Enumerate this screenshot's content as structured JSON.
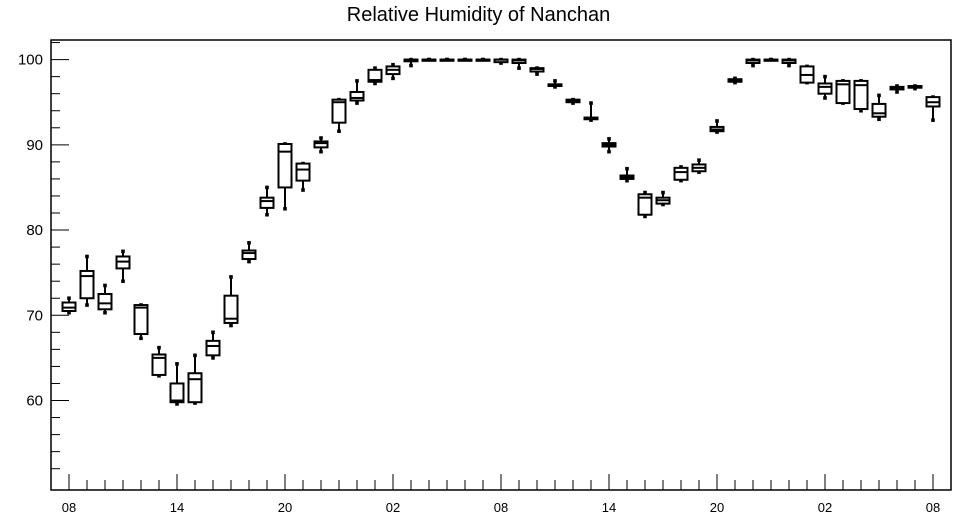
{
  "chart_data": {
    "type": "boxplot",
    "title": "Relative Humidity of Nanchan",
    "xlabel": "",
    "ylabel": "",
    "ylim": [
      49.5,
      102.3
    ],
    "yticks": [
      60,
      70,
      80,
      90,
      100
    ],
    "xticks": [
      {
        "label": "08",
        "hour": 0
      },
      {
        "label": "14",
        "hour": 6
      },
      {
        "label": "20",
        "hour": 12
      },
      {
        "label": "02",
        "hour": 18
      },
      {
        "label": "08",
        "hour": 24
      },
      {
        "label": "14",
        "hour": 30
      },
      {
        "label": "20",
        "hour": 36
      },
      {
        "label": "02",
        "hour": 42
      },
      {
        "label": "08",
        "hour": 48
      }
    ],
    "grid": false,
    "boxes": [
      {
        "hour": 0,
        "whisker_low": 70.3,
        "q1": 70.5,
        "median": 70.9,
        "q3": 71.5,
        "whisker_high": 72.0
      },
      {
        "hour": 1,
        "whisker_low": 71.2,
        "q1": 72.0,
        "median": 74.6,
        "q3": 75.2,
        "whisker_high": 76.9
      },
      {
        "hour": 2,
        "whisker_low": 70.3,
        "q1": 70.7,
        "median": 71.4,
        "q3": 72.5,
        "whisker_high": 73.5
      },
      {
        "hour": 3,
        "whisker_low": 74.0,
        "q1": 75.5,
        "median": 76.3,
        "q3": 76.9,
        "whisker_high": 77.5
      },
      {
        "hour": 4,
        "whisker_low": 67.3,
        "q1": 67.8,
        "median": 70.9,
        "q3": 71.2,
        "whisker_high": 71.2
      },
      {
        "hour": 5,
        "whisker_low": 62.9,
        "q1": 63.0,
        "median": 65.0,
        "q3": 65.4,
        "whisker_high": 66.2
      },
      {
        "hour": 6,
        "whisker_low": 59.6,
        "q1": 59.8,
        "median": 60.0,
        "q3": 62.0,
        "whisker_high": 64.3
      },
      {
        "hour": 7,
        "whisker_low": 59.7,
        "q1": 59.8,
        "median": 62.5,
        "q3": 63.2,
        "whisker_high": 65.3
      },
      {
        "hour": 8,
        "whisker_low": 65.0,
        "q1": 65.3,
        "median": 66.4,
        "q3": 67.0,
        "whisker_high": 68.0
      },
      {
        "hour": 9,
        "whisker_low": 68.8,
        "q1": 69.1,
        "median": 69.6,
        "q3": 72.3,
        "whisker_high": 74.5
      },
      {
        "hour": 10,
        "whisker_low": 76.3,
        "q1": 76.6,
        "median": 77.3,
        "q3": 77.6,
        "whisker_high": 78.5
      },
      {
        "hour": 11,
        "whisker_low": 81.8,
        "q1": 82.6,
        "median": 83.4,
        "q3": 83.8,
        "whisker_high": 85.0
      },
      {
        "hour": 12,
        "whisker_low": 82.5,
        "q1": 85.0,
        "median": 89.2,
        "q3": 90.1,
        "whisker_high": 90.1
      },
      {
        "hour": 13,
        "whisker_low": 84.7,
        "q1": 85.8,
        "median": 87.1,
        "q3": 87.8,
        "whisker_high": 87.8
      },
      {
        "hour": 14,
        "whisker_low": 89.2,
        "q1": 89.7,
        "median": 90.2,
        "q3": 90.4,
        "whisker_high": 90.8
      },
      {
        "hour": 15,
        "whisker_low": 91.6,
        "q1": 92.6,
        "median": 95.0,
        "q3": 95.3,
        "whisker_high": 95.3
      },
      {
        "hour": 16,
        "whisker_low": 94.9,
        "q1": 95.2,
        "median": 95.5,
        "q3": 96.2,
        "whisker_high": 97.5
      },
      {
        "hour": 17,
        "whisker_low": 97.2,
        "q1": 97.4,
        "median": 97.6,
        "q3": 98.8,
        "whisker_high": 99.0
      },
      {
        "hour": 18,
        "whisker_low": 97.8,
        "q1": 98.3,
        "median": 98.8,
        "q3": 99.2,
        "whisker_high": 99.4
      },
      {
        "hour": 19,
        "whisker_low": 99.3,
        "q1": 99.8,
        "median": 100.0,
        "q3": 100.0,
        "whisker_high": 100.0
      },
      {
        "hour": 20,
        "whisker_low": 100.0,
        "q1": 100.0,
        "median": 100.0,
        "q3": 100.0,
        "whisker_high": 100.0
      },
      {
        "hour": 21,
        "whisker_low": 100.0,
        "q1": 100.0,
        "median": 100.0,
        "q3": 100.0,
        "whisker_high": 100.0
      },
      {
        "hour": 22,
        "whisker_low": 100.0,
        "q1": 100.0,
        "median": 100.0,
        "q3": 100.0,
        "whisker_high": 100.0
      },
      {
        "hour": 23,
        "whisker_low": 100.0,
        "q1": 100.0,
        "median": 100.0,
        "q3": 100.0,
        "whisker_high": 100.0
      },
      {
        "hour": 24,
        "whisker_low": 99.6,
        "q1": 99.7,
        "median": 100.0,
        "q3": 100.0,
        "whisker_high": 100.0
      },
      {
        "hour": 25,
        "whisker_low": 99.0,
        "q1": 99.6,
        "median": 99.9,
        "q3": 100.0,
        "whisker_high": 100.0
      },
      {
        "hour": 26,
        "whisker_low": 98.3,
        "q1": 98.6,
        "median": 98.9,
        "q3": 99.0,
        "whisker_high": 99.0
      },
      {
        "hour": 27,
        "whisker_low": 96.8,
        "q1": 96.9,
        "median": 97.0,
        "q3": 97.1,
        "whisker_high": 97.5
      },
      {
        "hour": 28,
        "whisker_low": 94.9,
        "q1": 95.0,
        "median": 95.1,
        "q3": 95.3,
        "whisker_high": 95.3
      },
      {
        "hour": 29,
        "whisker_low": 92.9,
        "q1": 93.0,
        "median": 93.1,
        "q3": 93.2,
        "whisker_high": 94.9
      },
      {
        "hour": 30,
        "whisker_low": 89.2,
        "q1": 89.8,
        "median": 90.0,
        "q3": 90.2,
        "whisker_high": 90.7
      },
      {
        "hour": 31,
        "whisker_low": 85.8,
        "q1": 86.0,
        "median": 86.2,
        "q3": 86.4,
        "whisker_high": 87.2
      },
      {
        "hour": 32,
        "whisker_low": 81.6,
        "q1": 81.8,
        "median": 83.8,
        "q3": 84.2,
        "whisker_high": 84.4
      },
      {
        "hour": 33,
        "whisker_low": 83.0,
        "q1": 83.1,
        "median": 83.5,
        "q3": 83.8,
        "whisker_high": 84.4
      },
      {
        "hour": 34,
        "whisker_low": 85.8,
        "q1": 85.9,
        "median": 86.8,
        "q3": 87.3,
        "whisker_high": 87.4
      },
      {
        "hour": 35,
        "whisker_low": 86.8,
        "q1": 86.9,
        "median": 87.3,
        "q3": 87.7,
        "whisker_high": 88.2
      },
      {
        "hour": 36,
        "whisker_low": 91.5,
        "q1": 91.6,
        "median": 91.8,
        "q3": 92.1,
        "whisker_high": 92.8
      },
      {
        "hour": 37,
        "whisker_low": 97.3,
        "q1": 97.4,
        "median": 97.6,
        "q3": 97.7,
        "whisker_high": 97.8
      },
      {
        "hour": 38,
        "whisker_low": 99.3,
        "q1": 99.6,
        "median": 99.9,
        "q3": 100.0,
        "whisker_high": 100.0
      },
      {
        "hour": 39,
        "whisker_low": 100.0,
        "q1": 100.0,
        "median": 100.0,
        "q3": 100.0,
        "whisker_high": 100.0
      },
      {
        "hour": 40,
        "whisker_low": 99.3,
        "q1": 99.6,
        "median": 99.9,
        "q3": 100.0,
        "whisker_high": 100.0
      },
      {
        "hour": 41,
        "whisker_low": 97.3,
        "q1": 97.3,
        "median": 98.2,
        "q3": 99.2,
        "whisker_high": 99.2
      },
      {
        "hour": 42,
        "whisker_low": 95.5,
        "q1": 96.0,
        "median": 96.8,
        "q3": 97.2,
        "whisker_high": 98.0
      },
      {
        "hour": 43,
        "whisker_low": 94.9,
        "q1": 94.9,
        "median": 97.1,
        "q3": 97.5,
        "whisker_high": 97.5
      },
      {
        "hour": 44,
        "whisker_low": 94.0,
        "q1": 94.2,
        "median": 97.0,
        "q3": 97.5,
        "whisker_high": 97.5
      },
      {
        "hour": 45,
        "whisker_low": 93.0,
        "q1": 93.3,
        "median": 93.7,
        "q3": 94.8,
        "whisker_high": 95.8
      },
      {
        "hour": 46,
        "whisker_low": 96.2,
        "q1": 96.5,
        "median": 96.7,
        "q3": 96.8,
        "whisker_high": 96.9
      },
      {
        "hour": 47,
        "whisker_low": 96.6,
        "q1": 96.7,
        "median": 96.8,
        "q3": 96.9,
        "whisker_high": 96.9
      },
      {
        "hour": 48,
        "whisker_low": 92.9,
        "q1": 94.5,
        "median": 95.0,
        "q3": 95.6,
        "whisker_high": 95.6
      }
    ]
  }
}
